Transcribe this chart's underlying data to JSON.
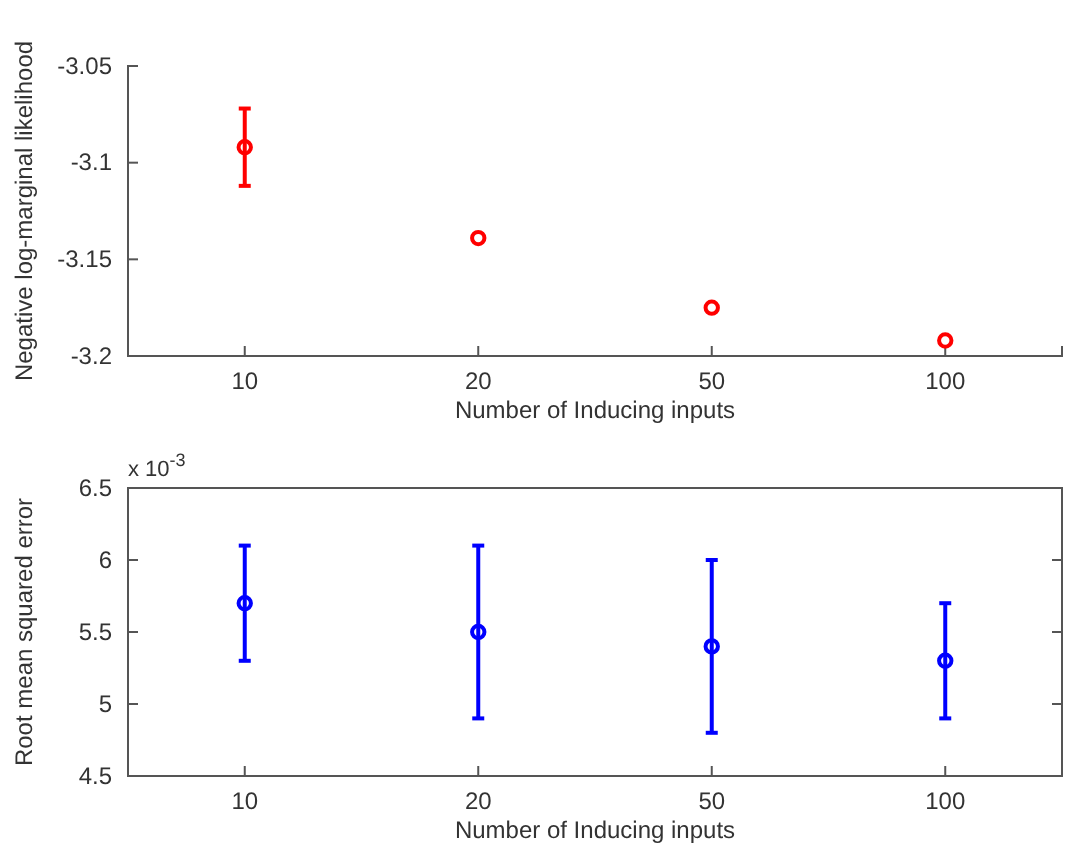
{
  "chart_data": [
    {
      "type": "scatter",
      "xlabel": "Number of Inducing inputs",
      "ylabel": "Negative log-marginal likelihood",
      "categories": [
        "10",
        "20",
        "50",
        "100"
      ],
      "series": [
        {
          "color": "#ff0000",
          "values": [
            -3.092,
            -3.139,
            -3.175,
            -3.192
          ],
          "errors": [
            [
              -3.112,
              -3.072
            ],
            null,
            null,
            null
          ]
        }
      ],
      "ylim": [
        -3.2,
        -3.05
      ],
      "yticks": [
        -3.2,
        -3.15,
        -3.1,
        -3.05
      ],
      "marker": "circle",
      "grid": false
    },
    {
      "type": "scatter",
      "xlabel": "Number of Inducing inputs",
      "ylabel": "Root mean squared error",
      "categories": [
        "10",
        "20",
        "50",
        "100"
      ],
      "series": [
        {
          "color": "#0000ff",
          "values": [
            5.7,
            5.5,
            5.4,
            5.3
          ],
          "errors": [
            [
              5.3,
              6.1
            ],
            [
              4.9,
              6.1
            ],
            [
              4.8,
              6.0
            ],
            [
              4.9,
              5.7
            ]
          ]
        }
      ],
      "ylim": [
        4.5,
        6.5
      ],
      "yticks": [
        4.5,
        5,
        5.5,
        6,
        6.5
      ],
      "annotations": [
        "x 10$^{-3}$"
      ],
      "marker": "circle",
      "grid": false
    }
  ]
}
